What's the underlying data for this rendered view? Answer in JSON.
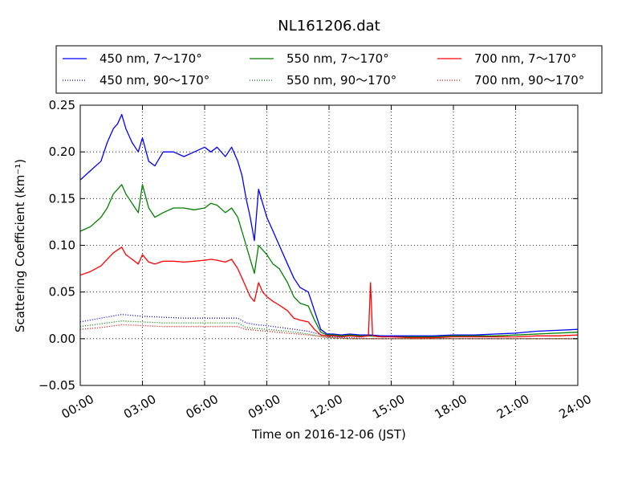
{
  "chart_data": {
    "type": "line",
    "title": "NL161206.dat",
    "xlabel": "Time on 2016-12-06 (JST)",
    "ylabel": "Scattering Coefficient (km⁻¹)",
    "xlim": [
      0,
      24
    ],
    "ylim": [
      -0.05,
      0.25
    ],
    "x_ticks": [
      0,
      3,
      6,
      9,
      12,
      15,
      18,
      21,
      24
    ],
    "x_tick_labels": [
      "00:00",
      "03:00",
      "06:00",
      "09:00",
      "12:00",
      "15:00",
      "18:00",
      "21:00",
      "24:00"
    ],
    "y_ticks": [
      -0.05,
      0.0,
      0.05,
      0.1,
      0.15,
      0.2,
      0.25
    ],
    "y_tick_labels": [
      "−0.05",
      "0.00",
      "0.05",
      "0.10",
      "0.15",
      "0.20",
      "0.25"
    ],
    "grid": true,
    "legend_position": "top",
    "x_unit": "hours (JST)",
    "series": [
      {
        "name": "450 nm, 7～170°",
        "color": "#0000ff",
        "style": "solid",
        "x": [
          0,
          0.5,
          1,
          1.3,
          1.6,
          1.8,
          2.0,
          2.2,
          2.5,
          2.8,
          3.0,
          3.3,
          3.6,
          4.0,
          4.5,
          5.0,
          5.5,
          6.0,
          6.3,
          6.6,
          7.0,
          7.3,
          7.6,
          7.8,
          8.0,
          8.2,
          8.4,
          8.6,
          8.8,
          9.0,
          9.3,
          9.6,
          10.0,
          10.3,
          10.6,
          11.0,
          11.3,
          11.6,
          11.9,
          12.2,
          12.6,
          13.0,
          13.5,
          14.0,
          14.5,
          15.0,
          16.0,
          17.0,
          18.0,
          19.0,
          20.0,
          21.0,
          22.0,
          23.0,
          24.0
        ],
        "y": [
          0.17,
          0.18,
          0.19,
          0.21,
          0.225,
          0.23,
          0.24,
          0.225,
          0.21,
          0.2,
          0.215,
          0.19,
          0.185,
          0.2,
          0.2,
          0.195,
          0.2,
          0.205,
          0.2,
          0.205,
          0.195,
          0.205,
          0.19,
          0.175,
          0.15,
          0.13,
          0.105,
          0.16,
          0.145,
          0.13,
          0.115,
          0.1,
          0.08,
          0.065,
          0.055,
          0.05,
          0.03,
          0.01,
          0.005,
          0.005,
          0.004,
          0.005,
          0.004,
          0.004,
          0.003,
          0.003,
          0.003,
          0.003,
          0.004,
          0.004,
          0.005,
          0.006,
          0.008,
          0.009,
          0.01
        ]
      },
      {
        "name": "550 nm, 7～170°",
        "color": "#008000",
        "style": "solid",
        "x": [
          0,
          0.5,
          1,
          1.3,
          1.6,
          1.8,
          2.0,
          2.2,
          2.5,
          2.8,
          3.0,
          3.3,
          3.6,
          4.0,
          4.5,
          5.0,
          5.5,
          6.0,
          6.3,
          6.6,
          7.0,
          7.3,
          7.6,
          7.8,
          8.0,
          8.2,
          8.4,
          8.6,
          8.8,
          9.0,
          9.3,
          9.6,
          10.0,
          10.3,
          10.6,
          11.0,
          11.3,
          11.6,
          11.9,
          12.2,
          12.6,
          13.0,
          13.5,
          14.0,
          14.5,
          15.0,
          16.0,
          17.0,
          18.0,
          19.0,
          20.0,
          21.0,
          22.0,
          23.0,
          24.0
        ],
        "y": [
          0.115,
          0.12,
          0.13,
          0.14,
          0.155,
          0.16,
          0.165,
          0.155,
          0.145,
          0.135,
          0.165,
          0.14,
          0.13,
          0.135,
          0.14,
          0.14,
          0.138,
          0.14,
          0.145,
          0.143,
          0.135,
          0.14,
          0.13,
          0.115,
          0.1,
          0.085,
          0.07,
          0.1,
          0.095,
          0.09,
          0.08,
          0.075,
          0.06,
          0.045,
          0.038,
          0.035,
          0.02,
          0.007,
          0.004,
          0.004,
          0.003,
          0.004,
          0.003,
          0.003,
          0.002,
          0.002,
          0.002,
          0.002,
          0.003,
          0.003,
          0.003,
          0.004,
          0.005,
          0.006,
          0.007
        ]
      },
      {
        "name": "700 nm, 7～170°",
        "color": "#ff0000",
        "style": "solid",
        "x": [
          0,
          0.5,
          1,
          1.3,
          1.6,
          1.8,
          2.0,
          2.2,
          2.5,
          2.8,
          3.0,
          3.3,
          3.6,
          4.0,
          4.5,
          5.0,
          5.5,
          6.0,
          6.3,
          6.6,
          7.0,
          7.3,
          7.6,
          7.8,
          8.0,
          8.2,
          8.4,
          8.6,
          8.8,
          9.0,
          9.3,
          9.6,
          10.0,
          10.3,
          10.6,
          11.0,
          11.3,
          11.6,
          11.9,
          12.2,
          12.6,
          13.0,
          13.5,
          13.9,
          14.0,
          14.1,
          14.5,
          15.0,
          16.0,
          17.0,
          18.0,
          19.0,
          20.0,
          21.0,
          22.0,
          23.0,
          24.0
        ],
        "y": [
          0.068,
          0.072,
          0.078,
          0.085,
          0.092,
          0.095,
          0.098,
          0.09,
          0.085,
          0.08,
          0.09,
          0.082,
          0.08,
          0.083,
          0.083,
          0.082,
          0.083,
          0.084,
          0.085,
          0.084,
          0.082,
          0.085,
          0.075,
          0.065,
          0.055,
          0.045,
          0.04,
          0.06,
          0.05,
          0.045,
          0.04,
          0.036,
          0.03,
          0.022,
          0.02,
          0.018,
          0.01,
          0.004,
          0.003,
          0.003,
          0.002,
          0.003,
          0.002,
          0.003,
          0.06,
          0.003,
          0.002,
          0.002,
          0.001,
          0.001,
          0.002,
          0.002,
          0.002,
          0.002,
          0.003,
          0.003,
          0.004
        ]
      },
      {
        "name": "450 nm, 90～170°",
        "color": "#0000ff",
        "style": "dotted",
        "x": [
          0,
          1,
          2,
          3,
          4,
          5,
          6,
          7,
          7.6,
          8,
          8.5,
          9,
          10,
          11,
          12,
          13,
          14,
          15,
          18,
          21,
          24
        ],
        "y": [
          0.018,
          0.022,
          0.026,
          0.024,
          0.023,
          0.022,
          0.022,
          0.022,
          0.022,
          0.017,
          0.015,
          0.014,
          0.011,
          0.008,
          0.002,
          0.001,
          0.0,
          0.0,
          0.0,
          0.0,
          0.0
        ]
      },
      {
        "name": "550 nm, 90～170°",
        "color": "#008000",
        "style": "dotted",
        "x": [
          0,
          1,
          2,
          3,
          4,
          5,
          6,
          7,
          7.6,
          8,
          8.5,
          9,
          10,
          11,
          12,
          13,
          14,
          15,
          18,
          21,
          24
        ],
        "y": [
          0.013,
          0.016,
          0.019,
          0.018,
          0.017,
          0.017,
          0.017,
          0.017,
          0.017,
          0.012,
          0.011,
          0.01,
          0.008,
          0.005,
          0.001,
          0.0,
          0.0,
          0.0,
          0.0,
          0.0,
          0.0
        ]
      },
      {
        "name": "700 nm, 90～170°",
        "color": "#ff0000",
        "style": "dotted",
        "x": [
          0,
          1,
          2,
          3,
          4,
          5,
          6,
          7,
          7.6,
          8,
          8.5,
          9,
          10,
          11,
          12,
          13,
          14,
          15,
          18,
          21,
          24
        ],
        "y": [
          0.01,
          0.012,
          0.015,
          0.014,
          0.013,
          0.013,
          0.013,
          0.013,
          0.013,
          0.01,
          0.009,
          0.008,
          0.006,
          0.004,
          0.001,
          0.0,
          0.0,
          0.0,
          0.0,
          0.0,
          0.0
        ]
      }
    ],
    "legend_order": [
      0,
      1,
      2,
      3,
      4,
      5
    ]
  }
}
